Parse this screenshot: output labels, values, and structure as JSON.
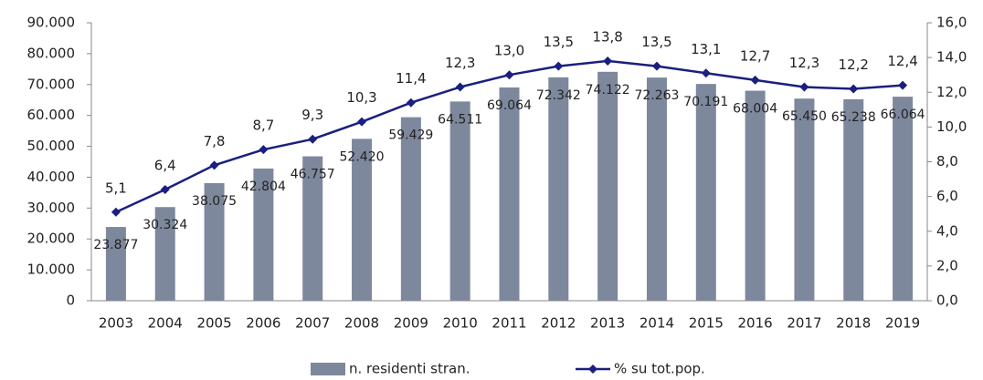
{
  "chart_data": {
    "type": "bar",
    "categories": [
      "2003",
      "2004",
      "2005",
      "2006",
      "2007",
      "2008",
      "2009",
      "2010",
      "2011",
      "2012",
      "2013",
      "2014",
      "2015",
      "2016",
      "2017",
      "2018",
      "2019"
    ],
    "series": [
      {
        "name": "n. residenti stran.",
        "type": "bar",
        "color": "#7d889d",
        "values": [
          23877,
          30324,
          38075,
          42804,
          46757,
          52420,
          59429,
          64511,
          69064,
          72342,
          74122,
          72263,
          70191,
          68004,
          65450,
          65238,
          66064
        ],
        "value_labels": [
          "23.877",
          "30.324",
          "38.075",
          "42.804",
          "46.757",
          "52.420",
          "59.429",
          "64.511",
          "69.064",
          "72.342",
          "74.122",
          "72.263",
          "70.191",
          "68.004",
          "65.450",
          "65.238",
          "66.064"
        ]
      },
      {
        "name": "% su tot.pop.",
        "type": "line",
        "axis": "y2",
        "color": "#1a1f80",
        "values": [
          5.1,
          6.4,
          7.8,
          8.7,
          9.3,
          10.3,
          11.4,
          12.3,
          13.0,
          13.5,
          13.8,
          13.5,
          13.1,
          12.7,
          12.3,
          12.2,
          12.4
        ],
        "value_labels": [
          "5,1",
          "6,4",
          "7,8",
          "8,7",
          "9,3",
          "10,3",
          "11,4",
          "12,3",
          "13,0",
          "13,5",
          "13,8",
          "13,5",
          "13,1",
          "12,7",
          "12,3",
          "12,2",
          "12,4"
        ]
      }
    ],
    "ylim": [
      0,
      90000
    ],
    "yticks": [
      0,
      {
        "value": 10000,
        "label": "10.000"
      },
      {
        "value": 20000,
        "label": "20.000"
      },
      {
        "value": 30000,
        "label": "30.000"
      },
      {
        "value": 40000,
        "label": "40.000"
      },
      {
        "value": 50000,
        "label": "50.000"
      },
      {
        "value": 60000,
        "label": "60.000"
      },
      {
        "value": 70000,
        "label": "70.000"
      },
      {
        "value": 80000,
        "label": "80.000"
      },
      {
        "value": 90000,
        "label": "90.000"
      }
    ],
    "y2lim": [
      0,
      16
    ],
    "y2ticks": [
      {
        "value": 0,
        "label": "0,0"
      },
      {
        "value": 2,
        "label": "2,0"
      },
      {
        "value": 4,
        "label": "4,0"
      },
      {
        "value": 6,
        "label": "6,0"
      },
      {
        "value": 8,
        "label": "8,0"
      },
      {
        "value": 10,
        "label": "10,0"
      },
      {
        "value": 12,
        "label": "12,0"
      },
      {
        "value": 14,
        "label": "14,0"
      },
      {
        "value": 16,
        "label": "16,0"
      }
    ],
    "grid": false,
    "legend": "bottom"
  }
}
